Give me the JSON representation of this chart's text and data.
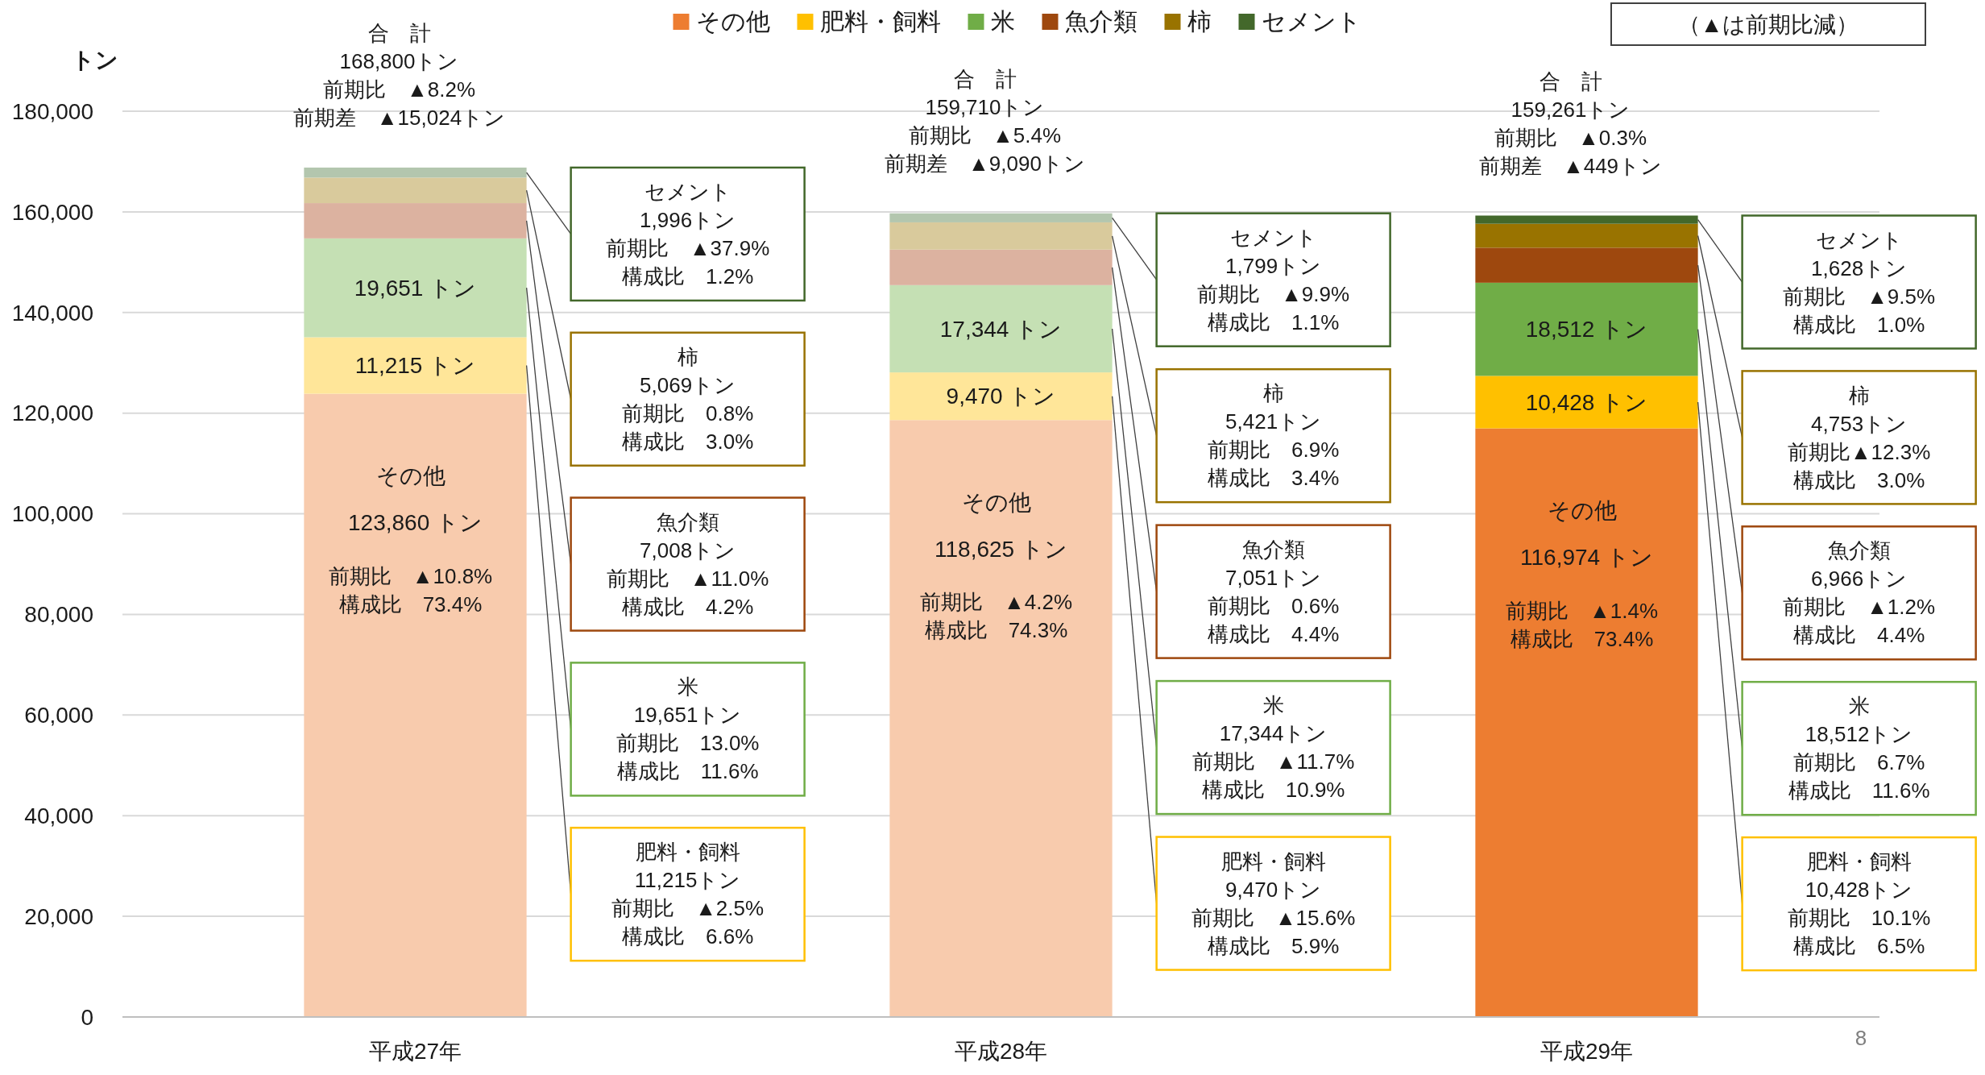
{
  "chart_data": {
    "type": "bar",
    "stacked": true,
    "categories": [
      "平成27年",
      "平成28年",
      "平成29年"
    ],
    "ylabel": "トン",
    "ylim": [
      0,
      180000
    ],
    "yticks": [
      {
        "value": 0,
        "label": "0"
      },
      {
        "value": 20000,
        "label": "20,000"
      },
      {
        "value": 40000,
        "label": "40,000"
      },
      {
        "value": 60000,
        "label": "60,000"
      },
      {
        "value": 80000,
        "label": "80,000"
      },
      {
        "value": 100000,
        "label": "100,000"
      },
      {
        "value": 120000,
        "label": "120,000"
      },
      {
        "value": 140000,
        "label": "140,000"
      },
      {
        "value": 160000,
        "label": "160,000"
      },
      {
        "value": 180000,
        "label": "180,000"
      }
    ],
    "grid": "y",
    "legend": "top",
    "series": [
      {
        "name": "その他",
        "color": "#ed7d31",
        "colors": [
          "#f8cbad",
          "#f8cbad",
          "#ed7d31"
        ],
        "values": [
          123860,
          118625,
          116974
        ],
        "value_labels": [
          "123,860 トン",
          "118,625 トン",
          "116,974 トン"
        ]
      },
      {
        "name": "肥料・飼料",
        "color": "#ffc000",
        "colors": [
          "#ffe699",
          "#ffe699",
          "#ffc000"
        ],
        "values": [
          11215,
          9470,
          10428
        ],
        "value_labels": [
          "11,215 トン",
          "9,470 トン",
          "10,428 トン"
        ]
      },
      {
        "name": "米",
        "color": "#70ad47",
        "colors": [
          "#c5e0b4",
          "#c5e0b4",
          "#70ad47"
        ],
        "values": [
          19651,
          17344,
          18512
        ],
        "value_labels": [
          "19,651 トン",
          "17,344 トン",
          "18,512 トン"
        ]
      },
      {
        "name": "魚介類",
        "color": "#9e480e",
        "colors": [
          "#dcb2a0",
          "#dcb2a0",
          "#9e480e"
        ],
        "values": [
          7008,
          7051,
          6966
        ]
      },
      {
        "name": "柿",
        "color": "#997300",
        "colors": [
          "#d9ca9c",
          "#d9ca9c",
          "#997300"
        ],
        "values": [
          5069,
          5421,
          4753
        ]
      },
      {
        "name": "セメント",
        "color": "#43682b",
        "colors": [
          "#b3c6ae",
          "#b3c6ae",
          "#43682b"
        ],
        "values": [
          1996,
          1799,
          1628
        ]
      }
    ],
    "annotations": [
      "合　計",
      "168,800トン",
      "前期比　▲8.2%",
      "前期差　▲15,024トン",
      "その他",
      "前期比　▲10.8%",
      "構成比　73.4%",
      "セメント",
      "1,996トン",
      "前期比　▲37.9%",
      "構成比　1.2%",
      "柿",
      "5,069トン",
      "前期比　0.8%",
      "構成比　3.0%",
      "魚介類",
      "7,008トン",
      "前期比　▲11.0%",
      "構成比　4.2%",
      "米",
      "19,651トン",
      "前期比　13.0%",
      "構成比　11.6%",
      "肥料・飼料",
      "11,215トン",
      "前期比　▲2.5%",
      "構成比　6.6%",
      "合　計",
      "159,710トン",
      "前期比　▲5.4%",
      "前期差　▲9,090トン",
      "その他",
      "前期比　▲4.2%",
      "構成比　74.3%",
      "セメント",
      "1,799トン",
      "前期比　▲9.9%",
      "構成比　1.1%",
      "柿",
      "5,421トン",
      "前期比　6.9%",
      "構成比　3.4%",
      "魚介類",
      "7,051トン",
      "前期比　0.6%",
      "構成比　4.4%",
      "米",
      "17,344トン",
      "前期比　▲11.7%",
      "構成比　10.9%",
      "肥料・飼料",
      "9,470トン",
      "前期比　▲15.6%",
      "構成比　5.9%",
      "合　計",
      "159,261トン",
      "前期比　▲0.3%",
      "前期差　▲449トン",
      "その他",
      "前期比　▲1.4%",
      "構成比　73.4%",
      "セメント",
      "1,628トン",
      "前期比　▲9.5%",
      "構成比　1.0%",
      "柿",
      "4,753トン",
      "前期比▲12.3%",
      "構成比　3.0%",
      "魚介類",
      "6,966トン",
      "前期比　▲1.2%",
      "構成比　4.4%",
      "米",
      "18,512トン",
      "前期比　6.7%",
      "構成比　11.6%",
      "肥料・飼料",
      "10,428トン",
      "前期比　10.1%",
      "構成比　6.5%",
      "（▲は前期比減）",
      "8"
    ]
  }
}
